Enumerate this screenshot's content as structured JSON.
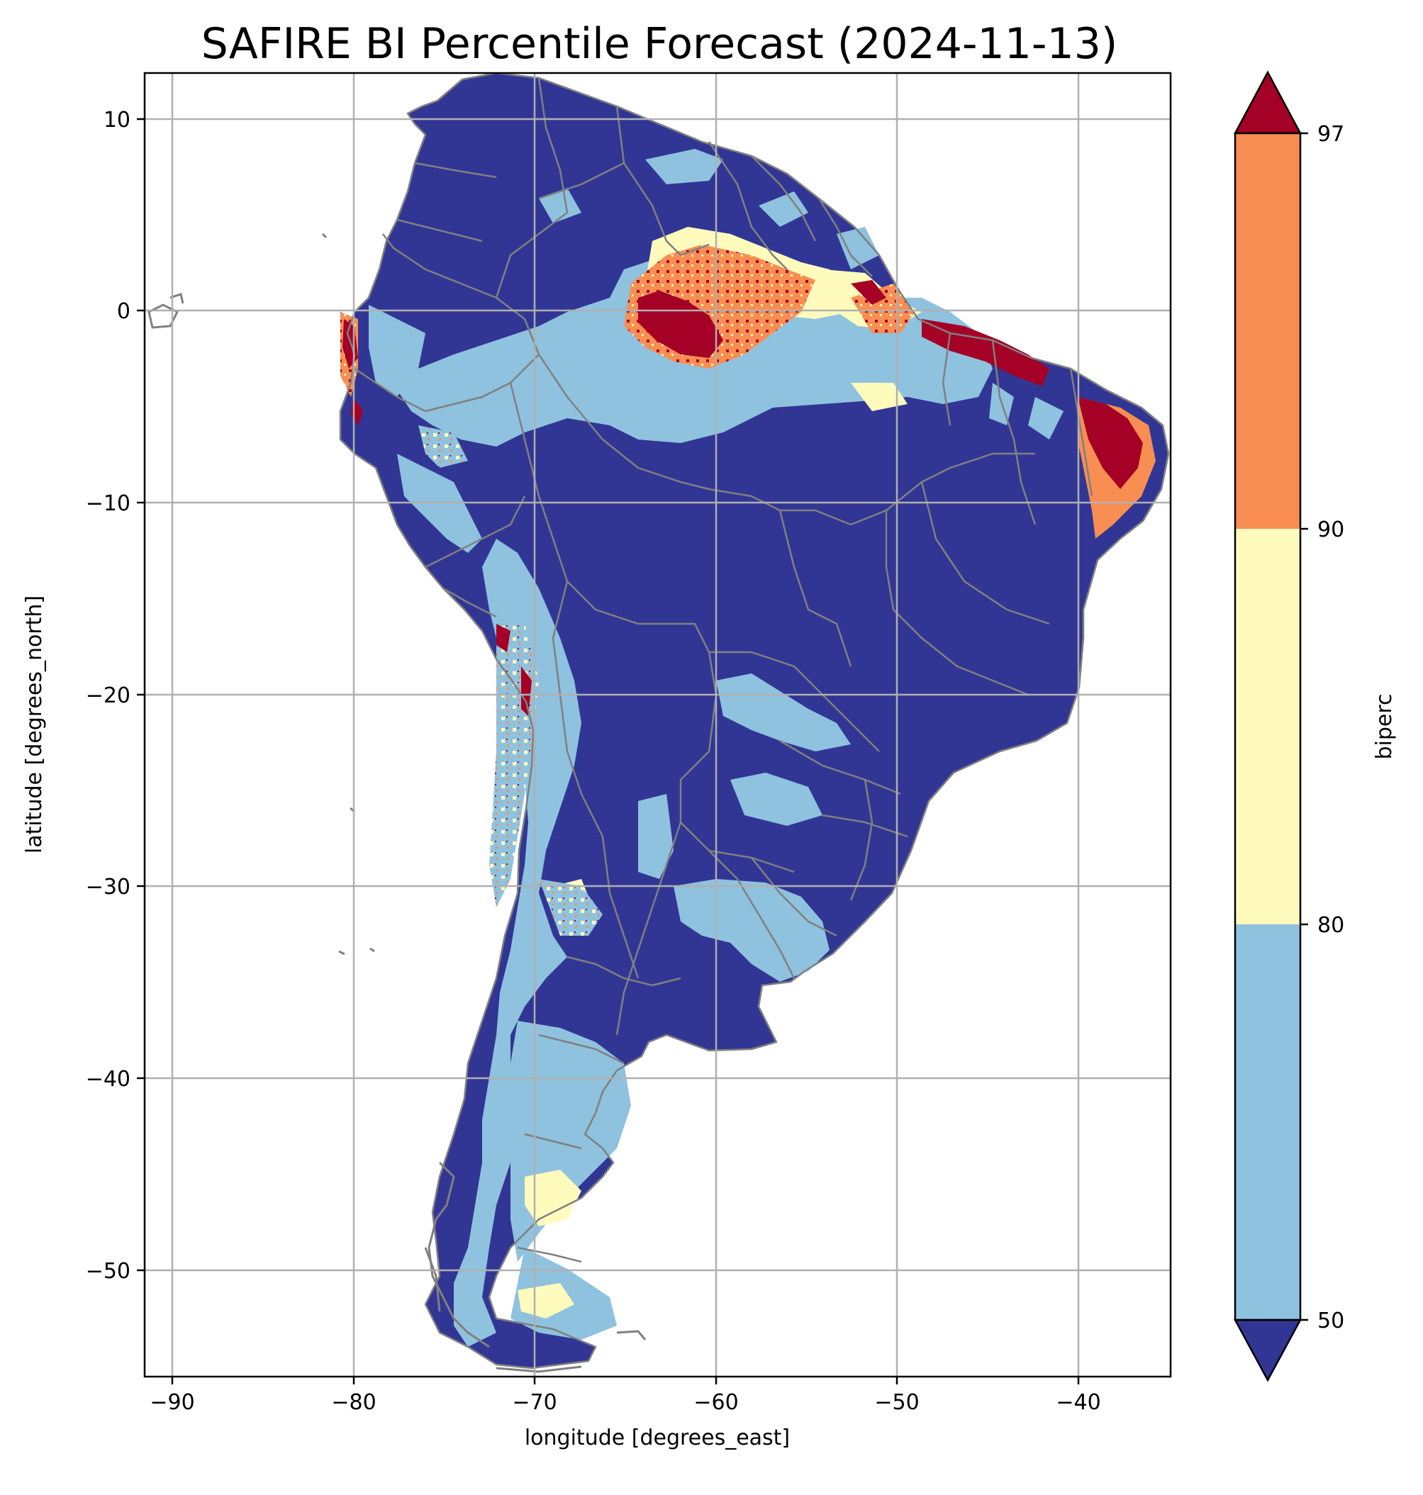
{
  "title": "SAFIRE BI Percentile Forecast (2024-11-13)",
  "x_axis": {
    "label": "longitude [degrees_east]",
    "range": [
      -91.6,
      -35.0
    ],
    "ticks": [
      -90,
      -80,
      -70,
      -60,
      -50,
      -40
    ],
    "tick_labels": [
      "−90",
      "−80",
      "−70",
      "−60",
      "−50",
      "−40"
    ]
  },
  "y_axis": {
    "label": "latitude [degrees_north]",
    "range": [
      -55.9,
      12.4
    ],
    "ticks": [
      10,
      0,
      -10,
      -20,
      -30,
      -40,
      -50
    ],
    "tick_labels": [
      "10",
      "0",
      "−10",
      "−20",
      "−30",
      "−40",
      "−50"
    ]
  },
  "grid": true,
  "colorbar": {
    "label": "biperc",
    "boundaries": [
      50,
      80,
      90,
      97
    ],
    "tick_labels": [
      "50",
      "80",
      "90",
      "97"
    ],
    "extend": "both",
    "colors": {
      "under": "#313695",
      "band_50_80": "#8fc2de",
      "band_80_90": "#fefbbd",
      "band_90_97": "#f98e52",
      "over": "#a50026"
    }
  },
  "colors": {
    "ocean": "#ffffff",
    "borders": "#808080",
    "grid": "#b0b0b0"
  }
}
